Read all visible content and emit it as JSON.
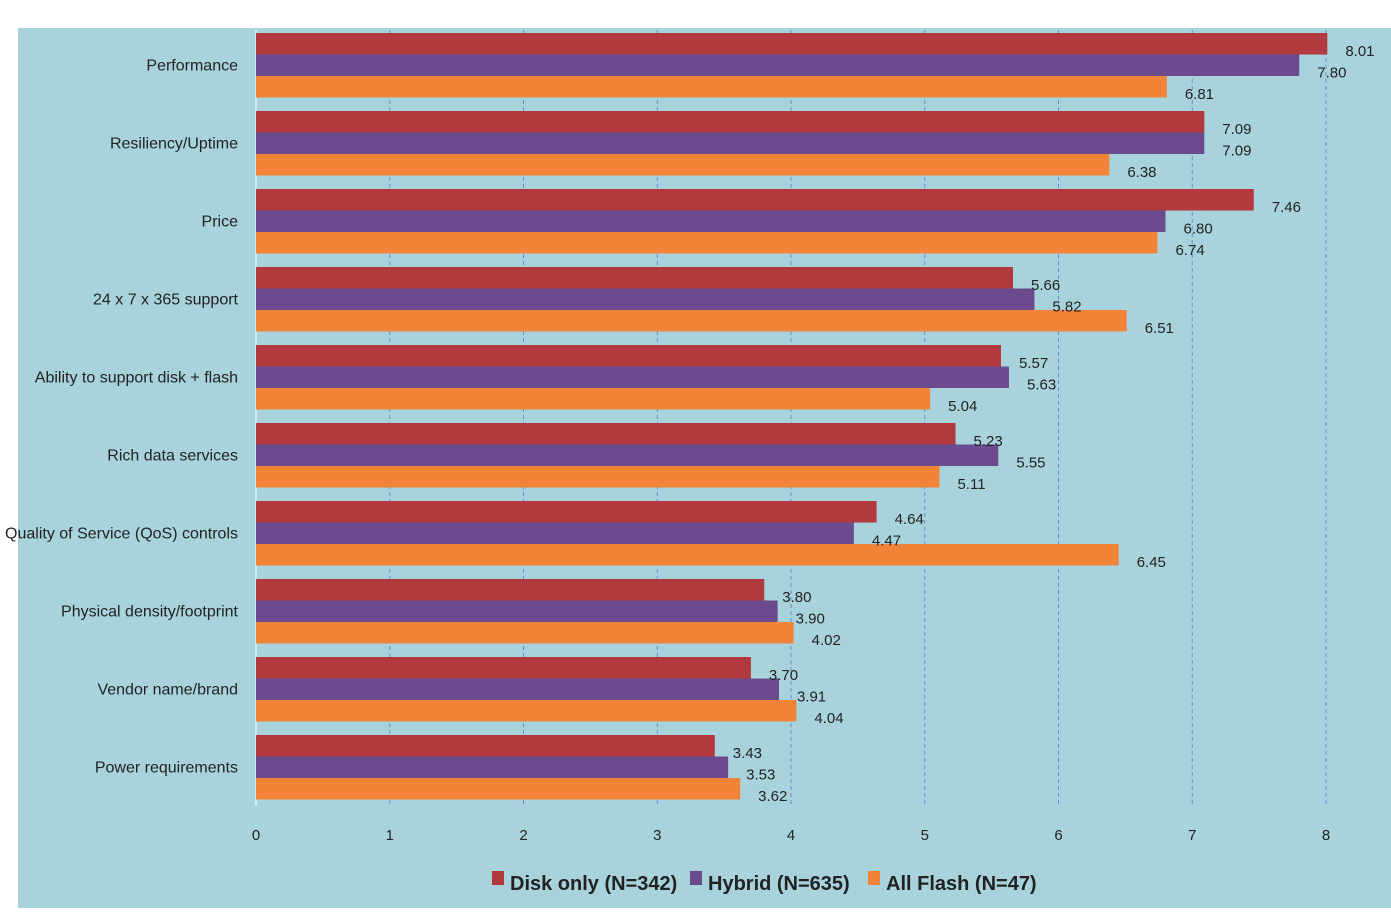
{
  "chart_data": {
    "type": "bar",
    "orientation": "horizontal",
    "title": "",
    "xlabel": "",
    "ylabel": "",
    "xlim": [
      0,
      8
    ],
    "x_ticks": [
      "0",
      "1",
      "2",
      "3",
      "4",
      "5",
      "6",
      "7",
      "8"
    ],
    "grid": "vertical dashed",
    "legend_position": "bottom",
    "categories": [
      "Performance",
      "Resiliency/Uptime",
      "Price",
      "24 x 7 x 365 support",
      "Ability to support disk + flash",
      "Rich data services",
      "Quality of Service (QoS) controls",
      "Physical density/footprint",
      "Vendor name/brand",
      "Power requirements"
    ],
    "series": [
      {
        "name": "Disk only (N=342)",
        "color": "#b23a3e",
        "values": [
          8.01,
          7.09,
          7.46,
          5.66,
          5.57,
          5.23,
          4.64,
          3.8,
          3.7,
          3.43
        ],
        "labels": [
          "8.01",
          "7.09",
          "7.46",
          "5.66",
          "5.57",
          "5.23",
          "4.64",
          "3.80",
          "3.70",
          "3.43"
        ]
      },
      {
        "name": "Hybrid (N=635)",
        "color": "#6b4a8e",
        "values": [
          7.8,
          7.09,
          6.8,
          5.82,
          5.63,
          5.55,
          4.47,
          3.9,
          3.91,
          3.53
        ],
        "labels": [
          "7.80",
          "7.09",
          "6.80",
          "5.82",
          "5.63",
          "5.55",
          "4.47",
          "3.90",
          "3.91",
          "3.53"
        ]
      },
      {
        "name": "All Flash (N=47)",
        "color": "#f2843a",
        "values": [
          6.81,
          6.38,
          6.74,
          6.51,
          5.04,
          5.11,
          6.45,
          4.02,
          4.04,
          3.62
        ],
        "labels": [
          "6.81",
          "6.38",
          "6.74",
          "6.51",
          "5.04",
          "5.11",
          "6.45",
          "4.02",
          "4.04",
          "3.62"
        ]
      }
    ],
    "colors": {
      "plot_background": "#a8d3dc",
      "gridline": "#5577cc",
      "text": "#222222"
    }
  }
}
